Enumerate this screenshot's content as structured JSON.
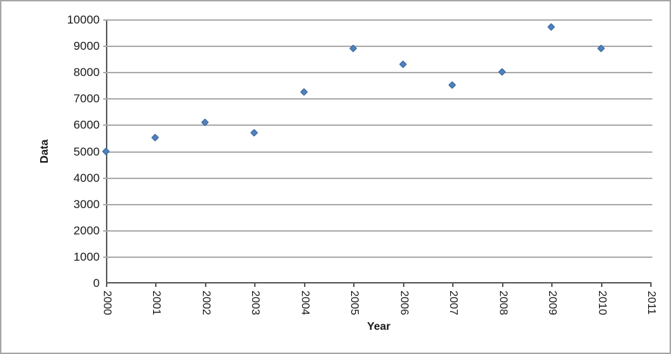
{
  "chart_data": {
    "type": "scatter",
    "title": "",
    "xlabel": "Year",
    "ylabel": "Data",
    "x": [
      2000,
      2001,
      2002,
      2003,
      2004,
      2005,
      2006,
      2007,
      2008,
      2009,
      2010
    ],
    "y": [
      5000,
      5500,
      6100,
      5700,
      7250,
      8900,
      8300,
      7500,
      8000,
      9700,
      8900
    ],
    "xlim": [
      2000,
      2011
    ],
    "ylim": [
      0,
      10000
    ],
    "y_tick_step": 1000,
    "x_tick_labels": [
      "2000",
      "2001",
      "2002",
      "2003",
      "2004",
      "2005",
      "2006",
      "2007",
      "2008",
      "2009",
      "2010",
      "2011"
    ],
    "grid": "horizontal",
    "legend": "none",
    "marker": {
      "shape": "diamond"
    }
  },
  "colors": {
    "frame-border": "#A6A6A6",
    "bg": "#FFFFFF",
    "axis": "#55595C",
    "grid": "#ABABAB",
    "marker": "#4F81BD",
    "marker-border": "#3A679A",
    "text": "#1A1A1A"
  }
}
